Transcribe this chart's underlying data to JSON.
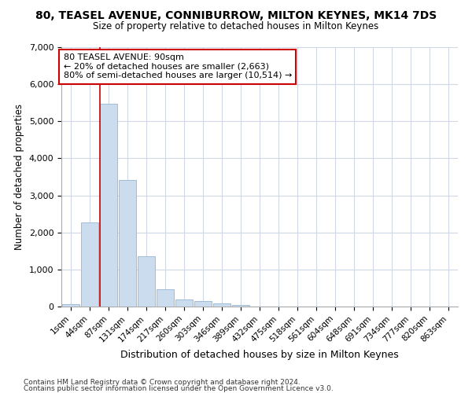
{
  "title": "80, TEASEL AVENUE, CONNIBURROW, MILTON KEYNES, MK14 7DS",
  "subtitle": "Size of property relative to detached houses in Milton Keynes",
  "xlabel": "Distribution of detached houses by size in Milton Keynes",
  "ylabel": "Number of detached properties",
  "bar_color": "#ccdcef",
  "bar_edge_color": "#a0bcd8",
  "vline_color": "#cc0000",
  "annotation_text": "80 TEASEL AVENUE: 90sqm\n← 20% of detached houses are smaller (2,663)\n80% of semi-detached houses are larger (10,514) →",
  "annotation_box_color": "#ffffff",
  "annotation_box_edge_color": "#cc0000",
  "footer1": "Contains HM Land Registry data © Crown copyright and database right 2024.",
  "footer2": "Contains public sector information licensed under the Open Government Licence v3.0.",
  "categories": [
    "1sqm",
    "44sqm",
    "87sqm",
    "131sqm",
    "174sqm",
    "217sqm",
    "260sqm",
    "303sqm",
    "346sqm",
    "389sqm",
    "432sqm",
    "475sqm",
    "518sqm",
    "561sqm",
    "604sqm",
    "648sqm",
    "691sqm",
    "734sqm",
    "777sqm",
    "820sqm",
    "863sqm"
  ],
  "values": [
    65,
    2270,
    5470,
    3420,
    1350,
    465,
    190,
    140,
    80,
    50,
    10,
    10,
    3,
    2,
    1,
    1,
    0,
    0,
    0,
    0,
    0
  ],
  "ylim": [
    0,
    7000
  ],
  "bg_color": "#ffffff",
  "grid_color": "#d0d8e8",
  "yticks": [
    0,
    1000,
    2000,
    3000,
    4000,
    5000,
    6000,
    7000
  ]
}
